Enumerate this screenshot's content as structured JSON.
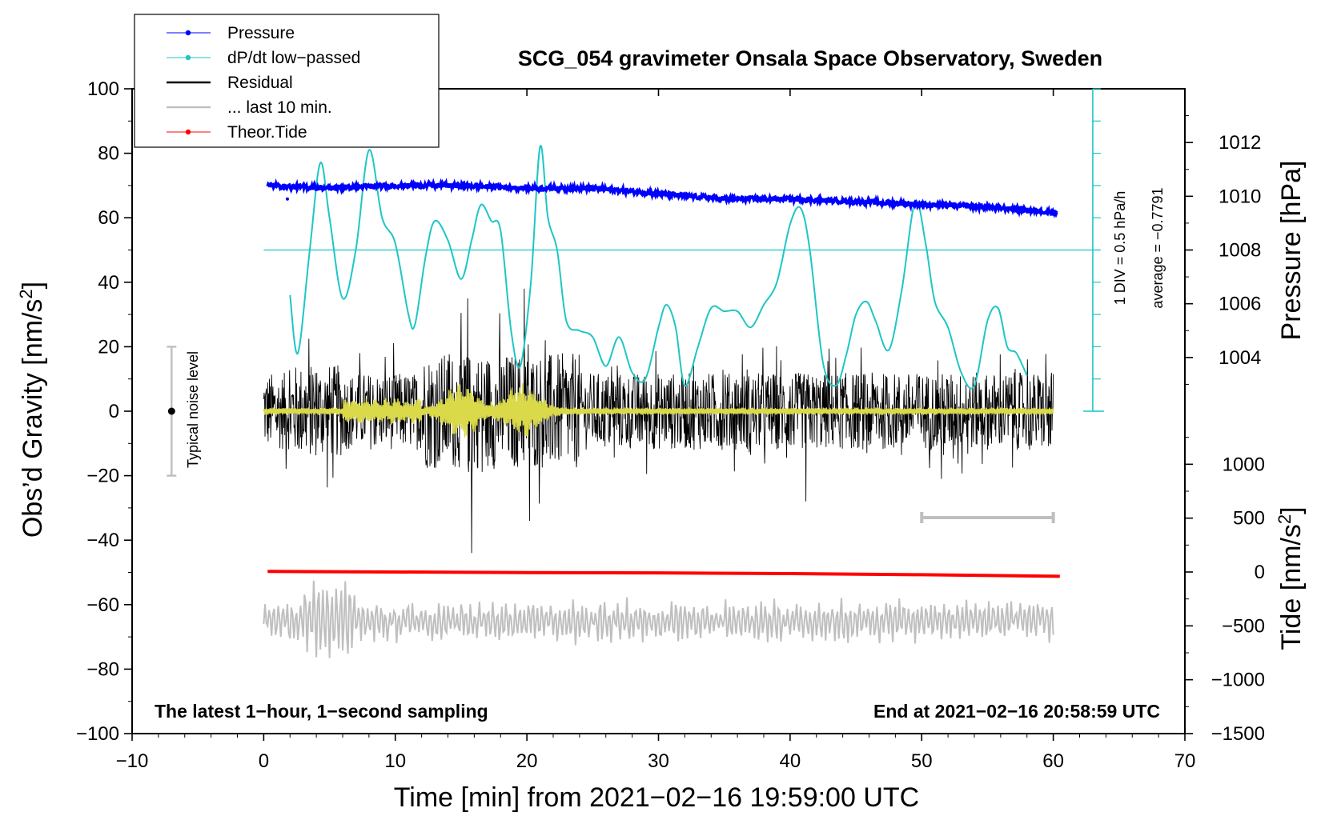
{
  "chart_data": {
    "type": "line",
    "title": "SCG_054 gravimeter Onsala Space Observatory, Sweden",
    "xlabel": "Time [min] from 2021−02−16 19:59:00 UTC",
    "ylabel_left": "Obs’d Gravity [nm/s",
    "ylabel_left_sup": "2",
    "ylabel_left_tail": "]",
    "ylabel_right_pressure": "Pressure [hPa]",
    "ylabel_right_tide": "Tide [nm/s",
    "ylabel_right_tide_sup": "2",
    "ylabel_right_tide_tail": "]",
    "xlim": [
      -10,
      70
    ],
    "ylim": [
      -100,
      100
    ],
    "x_ticks": [
      -10,
      0,
      10,
      20,
      30,
      40,
      50,
      60,
      70
    ],
    "x_tick_labels": [
      "−10",
      "0",
      "10",
      "20",
      "30",
      "40",
      "50",
      "60",
      "70"
    ],
    "y_ticks": [
      100,
      80,
      60,
      40,
      20,
      0,
      -20,
      -40,
      -60,
      -80,
      -100
    ],
    "y_tick_labels": [
      "100",
      "80",
      "60",
      "40",
      "20",
      "0",
      "−20",
      "−40",
      "−60",
      "−80",
      "−100"
    ],
    "pressure_axis": {
      "range_hPa": [
        1002,
        1014
      ],
      "ticks": [
        1012,
        1010,
        1008,
        1006,
        1004
      ],
      "tick_labels": [
        "1012",
        "1010",
        "1008",
        "1006",
        "1004"
      ]
    },
    "tide_axis": {
      "range": [
        -1500,
        1500
      ],
      "ticks": [
        1000,
        500,
        0,
        -500,
        -1000,
        -1500
      ],
      "tick_labels": [
        "1000",
        "500",
        "0",
        "−500",
        "−1000",
        "−1500"
      ]
    },
    "legend": [
      {
        "label": "Pressure",
        "color": "#0000ff",
        "marker": true
      },
      {
        "label": "dP/dt low−passed",
        "color": "#1ec6c6",
        "marker": true
      },
      {
        "label": "Residual",
        "color": "#000000",
        "marker": false
      },
      {
        "label": "... last 10 min.",
        "color": "#bfbfbf",
        "marker": false
      },
      {
        "label": "Theor.Tide",
        "color": "#ff0000",
        "marker": true
      }
    ],
    "series": [
      {
        "name": "Pressure",
        "units": "hPa",
        "color": "#0000ff",
        "x": [
          0.3,
          5,
          10,
          15,
          20,
          25,
          30,
          35,
          40,
          45,
          50,
          55,
          60.3
        ],
        "values": [
          1010.4,
          1010.3,
          1010.4,
          1010.4,
          1010.3,
          1010.3,
          1010.1,
          1009.9,
          1009.9,
          1009.8,
          1009.7,
          1009.6,
          1009.4
        ]
      },
      {
        "name": "dP/dt low−passed",
        "units": "nm/s2 scale (1 DIV = 0.5 hPa/h)",
        "color": "#1ec6c6",
        "x": [
          2.0,
          2.6,
          3.5,
          4.3,
          5.0,
          6.0,
          7.0,
          8.0,
          9.0,
          10.0,
          11.0,
          11.5,
          12.3,
          13.0,
          14.0,
          15.0,
          15.8,
          16.5,
          17.3,
          18.0,
          18.8,
          19.5,
          20.3,
          21.0,
          21.6,
          22.3,
          23.0,
          24.0,
          25.0,
          26.0,
          27.0,
          28.0,
          29.0,
          30.0,
          30.6,
          31.3,
          32.0,
          33.0,
          34.0,
          35.0,
          36.0,
          37.0,
          38.0,
          39.0,
          40.0,
          40.8,
          41.5,
          42.5,
          43.5,
          44.3,
          45.0,
          45.8,
          46.5,
          47.5,
          48.5,
          49.5,
          50.3,
          51.0,
          52.0,
          53.0,
          54.0,
          55.0,
          55.8,
          56.5,
          57.2,
          58.0
        ],
        "values": [
          36,
          18,
          50,
          77,
          60,
          35,
          50,
          81,
          60,
          52,
          30,
          27,
          48,
          59,
          53,
          41,
          53,
          64,
          59,
          56,
          25,
          14,
          40,
          82,
          60,
          50,
          28,
          25,
          23,
          14,
          23,
          12,
          10,
          26,
          33,
          26,
          8,
          20,
          32,
          31,
          31,
          26,
          33,
          40,
          58,
          63,
          50,
          15,
          8,
          18,
          30,
          34,
          28,
          19,
          38,
          65,
          52,
          34,
          26,
          12,
          8,
          28,
          32,
          20,
          18,
          11
        ]
      },
      {
        "name": "Residual",
        "units": "nm/s2",
        "color": "#000000",
        "x_range": [
          0,
          60
        ],
        "typical_amplitude": 12,
        "extremes": [
          {
            "x": 15.8,
            "value": -44
          },
          {
            "x": 15.5,
            "value": 35
          },
          {
            "x": 19.8,
            "value": 38
          },
          {
            "x": 20.2,
            "value": -34
          },
          {
            "x": 41.2,
            "value": -28
          },
          {
            "x": 51.5,
            "value": -21
          }
        ]
      },
      {
        "name": "Low-passed residual",
        "units": "nm/s2",
        "color": "#d9d94a",
        "x_range": [
          0,
          60
        ],
        "note": "bursts near 15 and 20 min with amplitude about 8",
        "bursts": [
          {
            "x": 15.0,
            "amplitude": 8
          },
          {
            "x": 19.7,
            "amplitude": 8
          }
        ]
      },
      {
        "name": "... last 10 min.",
        "units": "nm/s2 (offset to −65)",
        "color": "#bfbfbf",
        "x_range": [
          0,
          60
        ],
        "center": -65,
        "typical_amplitude": 6,
        "max_amplitude": 20
      },
      {
        "name": "Theor.Tide",
        "units": "tide axis",
        "color": "#ff0000",
        "x": [
          0.3,
          10,
          20,
          30,
          40,
          50,
          60.5
        ],
        "values": [
          5,
          0,
          -5,
          -8,
          -15,
          -25,
          -40
        ]
      }
    ],
    "annotations": {
      "dp_axis_label_1": "1 DIV = 0.5 hPa/h",
      "dp_axis_label_2": "average = −0.7791",
      "dp_average_level": 50,
      "noise_label": "Typical noise level",
      "noise_bar": {
        "x": -7,
        "center": 0,
        "half_range": 20
      },
      "ten_min_bar": {
        "x_start": 50,
        "x_end": 60,
        "y": -33
      },
      "bottom_left": "The latest 1−hour, 1−second sampling",
      "bottom_right": "End at 2021−02−16 20:58:59 UTC"
    }
  }
}
